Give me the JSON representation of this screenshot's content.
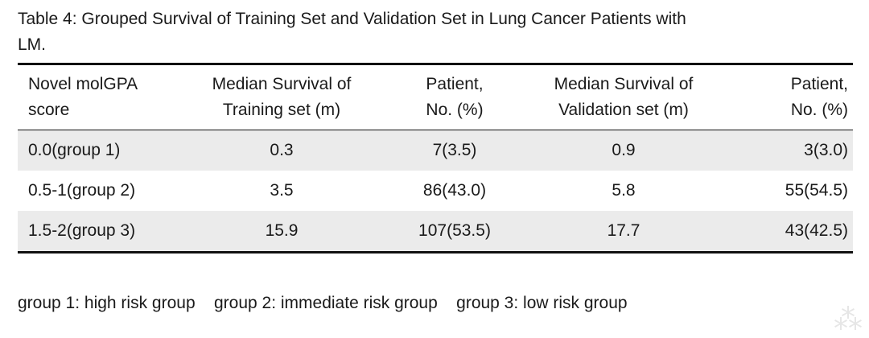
{
  "caption": {
    "line1": "Table 4: Grouped Survival of Training Set and Validation Set in Lung Cancer Patients with",
    "line2": "LM."
  },
  "table": {
    "headers": [
      {
        "line1": "Novel molGPA",
        "line2": "score"
      },
      {
        "line1": "Median Survival of",
        "line2": "Training set (m)"
      },
      {
        "line1": "Patient,",
        "line2": "No. (%)"
      },
      {
        "line1": "Median Survival of",
        "line2": "Validation set (m)"
      },
      {
        "line1": "Patient,",
        "line2": "No. (%)"
      }
    ],
    "rows": [
      [
        "0.0(group 1)",
        "0.3",
        "7(3.5)",
        "0.9",
        "3(3.0)"
      ],
      [
        "0.5-1(group 2)",
        "3.5",
        "86(43.0)",
        "5.8",
        "55(54.5)"
      ],
      [
        "1.5-2(group 3)",
        "15.9",
        "107(53.5)",
        "17.7",
        "43(42.5)"
      ]
    ]
  },
  "footnote": {
    "group1": "group 1: high risk group",
    "group2": "group 2: immediate risk group",
    "group3": "group 3: low risk group"
  }
}
